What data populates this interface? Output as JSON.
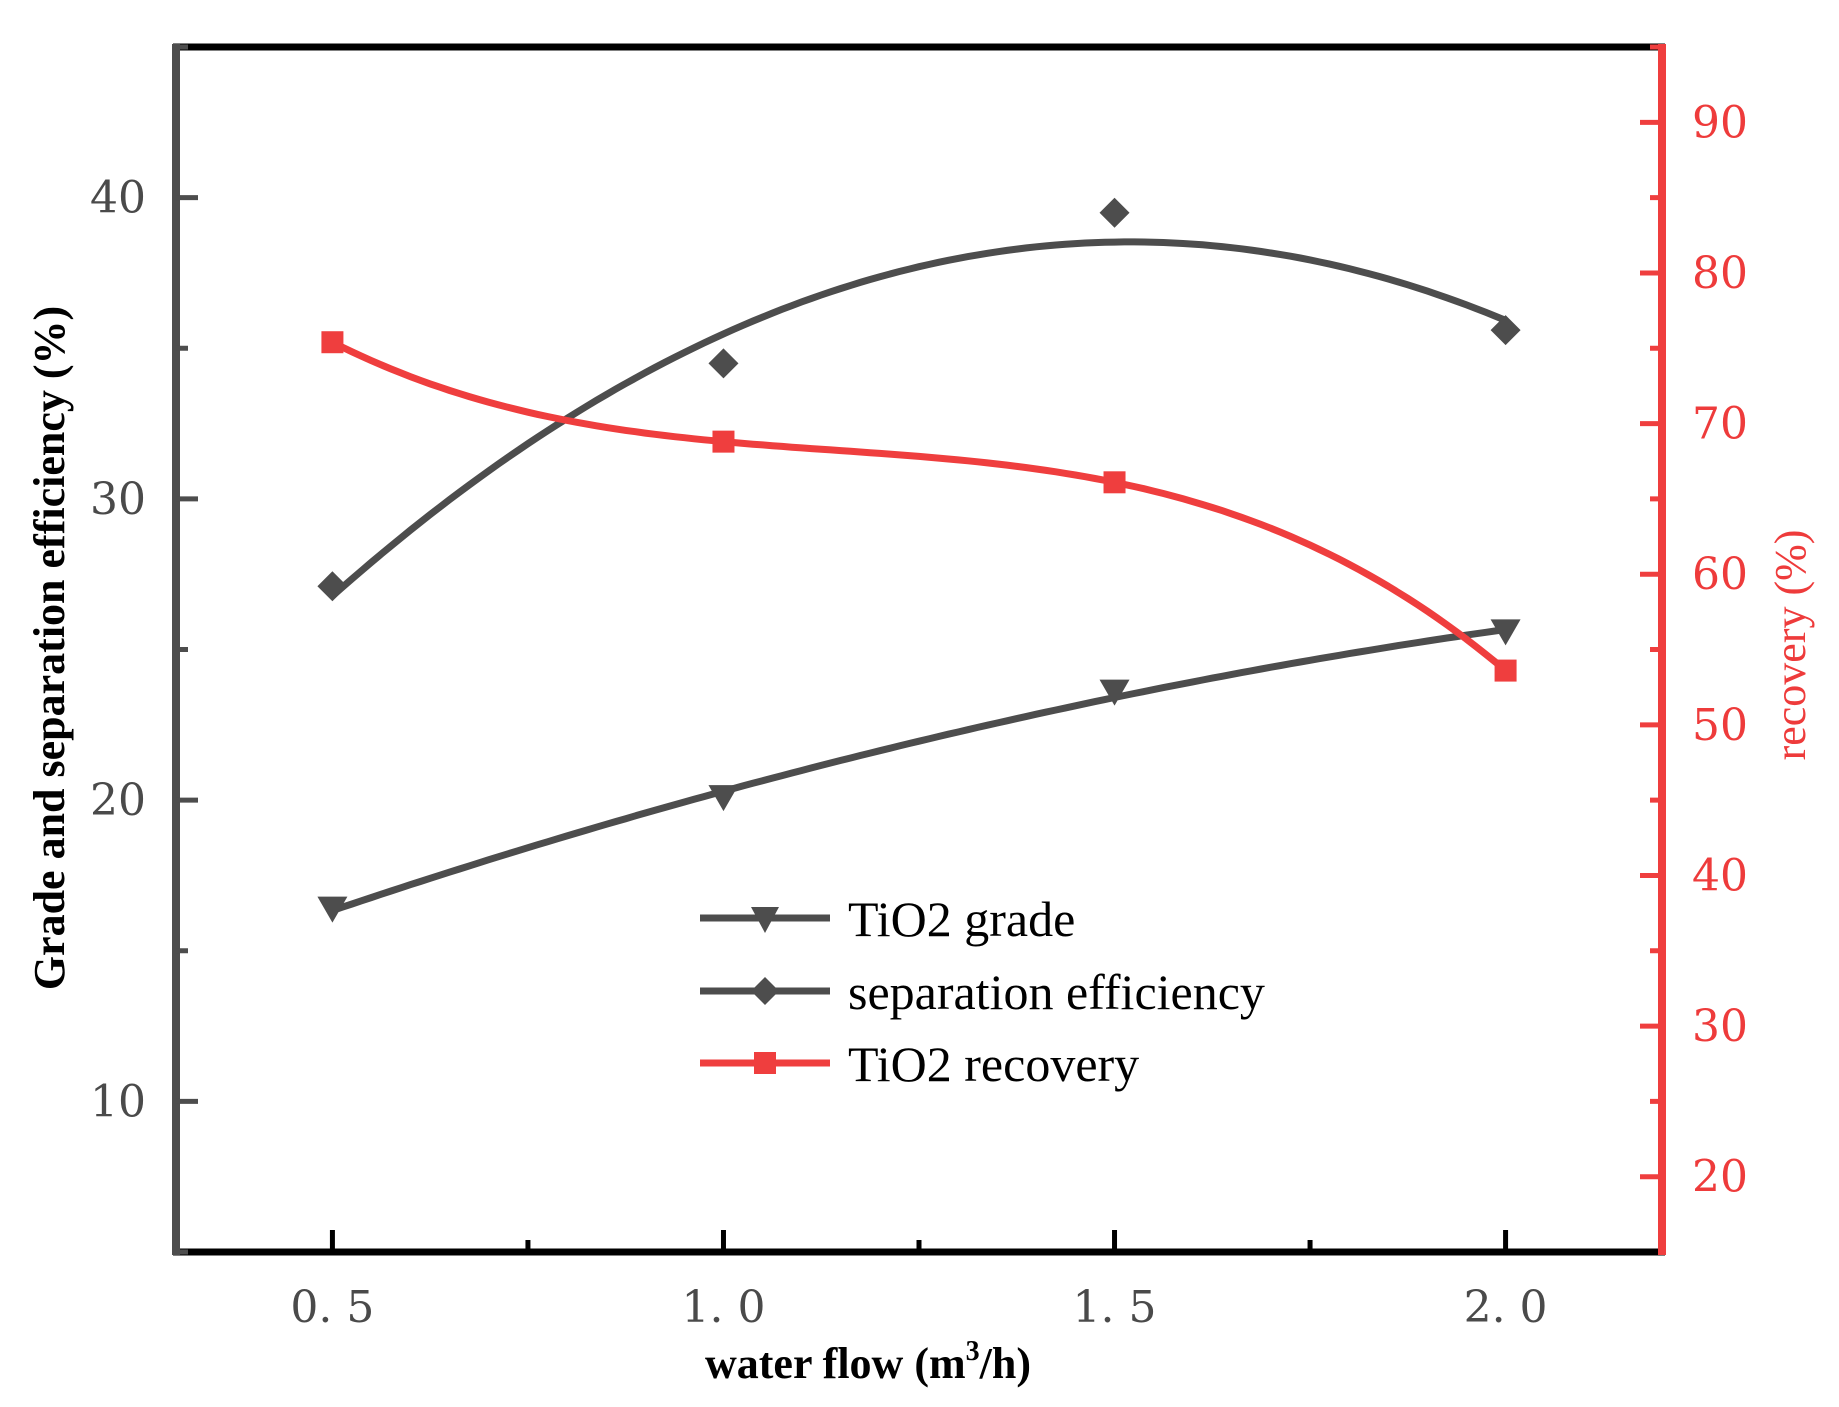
{
  "colors": {
    "dark": "#4d4d4d",
    "red": "#ef3e3e"
  },
  "chart_data": {
    "type": "line",
    "x": [
      0.5,
      1.0,
      1.5,
      2.0
    ],
    "x_tick_labels": [
      "0. 5",
      "1. 0",
      "1. 5",
      "2. 0"
    ],
    "xlim": [
      0.3,
      2.2
    ],
    "xlabel_prefix": "water flow (m",
    "xlabel_sup": "3",
    "xlabel_suffix": "/h)",
    "ylabel_left": "Grade and separation efficiency (%)",
    "ylim_left": [
      5,
      45
    ],
    "y_left_ticks": [
      "10",
      "20",
      "30",
      "40"
    ],
    "y_left_tick_values": [
      10,
      20,
      30,
      40
    ],
    "ylabel_right": "recovery (%)",
    "ylim_right": [
      15,
      95
    ],
    "y_right_ticks": [
      "20",
      "30",
      "40",
      "50",
      "60",
      "70",
      "80",
      "90"
    ],
    "y_right_tick_values": [
      20,
      30,
      40,
      50,
      60,
      70,
      80,
      90
    ],
    "series": [
      {
        "name": "TiO2 grade",
        "axis": "left",
        "marker": "triangle-down",
        "color": "dark",
        "values": [
          16.4,
          20.1,
          23.6,
          25.6
        ]
      },
      {
        "name": "separation efficiency",
        "axis": "left",
        "marker": "diamond",
        "color": "dark",
        "values": [
          27.1,
          34.5,
          39.5,
          35.6
        ]
      },
      {
        "name": "TiO2 recovery",
        "axis": "right",
        "marker": "square",
        "color": "red",
        "values": [
          75.4,
          68.8,
          66.1,
          53.6
        ]
      }
    ]
  }
}
